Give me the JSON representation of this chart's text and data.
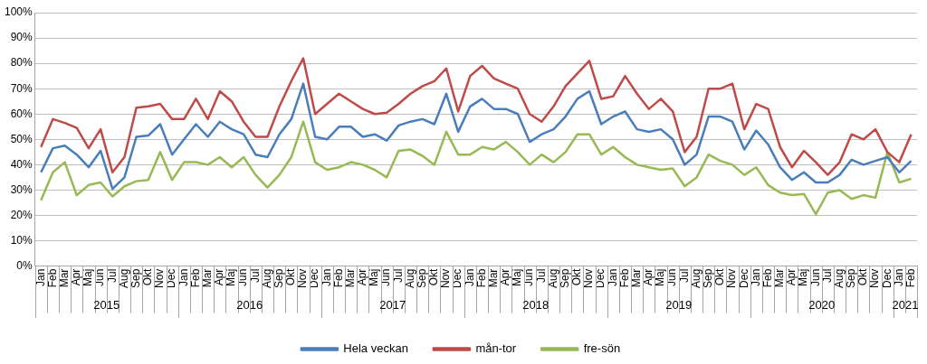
{
  "chart_data": {
    "type": "line",
    "categories": [
      "Jan",
      "Feb",
      "Mar",
      "Apr",
      "Maj",
      "Jun",
      "Jul",
      "Aug",
      "Sep",
      "Okt",
      "Nov",
      "Dec",
      "Jan",
      "Feb",
      "Mar",
      "Apr",
      "Maj",
      "Jun",
      "Jul",
      "Aug",
      "Sep",
      "Okt",
      "Nov",
      "Dec",
      "Jan",
      "Feb",
      "Mar",
      "Apr",
      "Maj",
      "Jun",
      "Jul",
      "Aug",
      "Sep",
      "Okt",
      "Nov",
      "Dec",
      "Jan",
      "Feb",
      "Mar",
      "Apr",
      "Maj",
      "Jun",
      "Jul",
      "Aug",
      "Sep",
      "Okt",
      "Nov",
      "Dec",
      "Jan",
      "Feb",
      "Mar",
      "Apr",
      "Maj",
      "Jun",
      "Jul",
      "Aug",
      "Sep",
      "Okt",
      "Nov",
      "Dec",
      "Jan",
      "Feb",
      "Mar",
      "Apr",
      "Maj",
      "Jun",
      "Jul",
      "Aug",
      "Sep",
      "Okt",
      "Nov",
      "Dec",
      "Jan",
      "Feb"
    ],
    "annotations": [
      "2015",
      "2016",
      "2017",
      "2018",
      "2019",
      "2020",
      "2021"
    ],
    "series": [
      {
        "name": "Hela veckan",
        "color": "#4a7ebb",
        "values": [
          37,
          46.5,
          47.5,
          44,
          39,
          45.5,
          30.5,
          35,
          51,
          51.5,
          56,
          44,
          50,
          56,
          51,
          57,
          54,
          52,
          44,
          43,
          52,
          58,
          72,
          51,
          50,
          55,
          55,
          51,
          52,
          49.5,
          55.5,
          57,
          58,
          56,
          68,
          53,
          63,
          66,
          62,
          62,
          60,
          49,
          52,
          54,
          59,
          66,
          69,
          56,
          59,
          61,
          54,
          53,
          54,
          50,
          40,
          44,
          59,
          59,
          57,
          46,
          53.5,
          48,
          39,
          34,
          37,
          33,
          33,
          36,
          42,
          40,
          41.5,
          43,
          37,
          41.5
        ]
      },
      {
        "name": "mån-tor",
        "color": "#be4b48",
        "values": [
          47,
          58,
          56.5,
          54.5,
          46.5,
          54,
          37,
          43,
          62.5,
          63,
          64,
          58,
          58,
          66,
          58,
          69,
          65,
          57,
          51,
          51,
          63,
          73,
          82,
          60,
          64,
          68,
          65,
          62,
          60,
          60.5,
          64,
          68,
          71,
          73,
          78,
          61,
          75,
          79,
          74,
          72,
          70,
          60,
          57,
          63,
          71,
          76,
          81,
          66,
          67,
          75,
          68,
          62,
          66,
          61,
          45,
          51,
          70,
          70,
          72,
          54,
          64,
          62,
          47,
          39,
          45.5,
          41,
          36,
          41,
          52,
          50,
          54,
          45,
          41,
          52
        ]
      },
      {
        "name": "fre-sön",
        "color": "#98b954",
        "values": [
          26,
          37,
          41,
          28,
          32,
          33,
          27.5,
          31.5,
          33.5,
          34,
          45,
          34,
          41,
          41,
          40,
          43,
          39,
          43,
          36,
          31,
          36,
          43,
          57,
          41,
          38,
          39,
          41,
          40,
          38,
          35,
          45.5,
          46,
          43.5,
          40,
          53,
          44,
          44,
          47,
          46,
          49,
          45,
          40,
          44,
          41,
          45,
          52,
          52,
          44,
          47,
          43,
          40,
          39,
          38,
          38.5,
          31.5,
          35,
          44,
          41.5,
          40,
          36,
          39,
          32,
          29,
          28,
          28.5,
          20.5,
          29,
          30,
          26.5,
          28,
          27,
          45,
          33,
          34.5
        ]
      }
    ],
    "ylim": [
      0,
      100
    ],
    "yticks": [
      {
        "value": 0,
        "label": "0%"
      },
      {
        "value": 10,
        "label": "10%"
      },
      {
        "value": 20,
        "label": "20%"
      },
      {
        "value": 30,
        "label": "30%"
      },
      {
        "value": 40,
        "label": "40%"
      },
      {
        "value": 50,
        "label": "50%"
      },
      {
        "value": 60,
        "label": "60%"
      },
      {
        "value": 70,
        "label": "70%"
      },
      {
        "value": 80,
        "label": "80%"
      },
      {
        "value": 90,
        "label": "90%"
      },
      {
        "value": 100,
        "label": "100%"
      }
    ],
    "grid": "y",
    "legend": "bottom",
    "marker": "none",
    "line_style": "solid"
  }
}
